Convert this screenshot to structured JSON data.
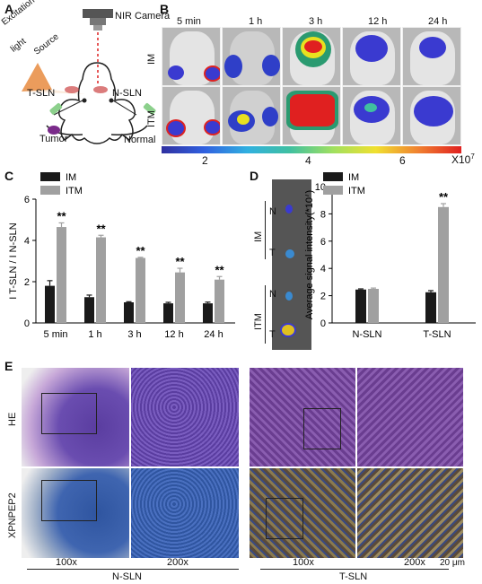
{
  "panels": {
    "A": "A",
    "B": "B",
    "C": "C",
    "D": "D",
    "E": "E"
  },
  "panelA": {
    "nir_camera": "NIR Camera",
    "excitation_line1": "Excitation",
    "excitation_line2": "light",
    "excitation_line3": "Source",
    "t_sln": "T-SLN",
    "n_sln": "N-SLN",
    "tumor": "Tumor",
    "normal": "Normal"
  },
  "panelB": {
    "timepoints": [
      "5 min",
      "1 h",
      "3 h",
      "12 h",
      "24 h"
    ],
    "rows": [
      "IM",
      "ITM"
    ],
    "colorbar_ticks": [
      "2",
      "4",
      "6"
    ],
    "colorbar_unit": "X10",
    "colorbar_exp": "7",
    "colors": {
      "low": "#3030c0",
      "mid": "#40c0a0",
      "high": "#e02020"
    }
  },
  "chart_data": [
    {
      "type": "bar",
      "panel": "C",
      "categories": [
        "5 min",
        "1 h",
        "3 h",
        "12 h",
        "24 h"
      ],
      "series": [
        {
          "name": "IM",
          "color": "#1a1a1a",
          "values": [
            1.8,
            1.25,
            1.0,
            0.95,
            0.95
          ],
          "errors": [
            0.25,
            0.1,
            0.03,
            0.05,
            0.06
          ]
        },
        {
          "name": "ITM",
          "color": "#a0a0a0",
          "values": [
            4.65,
            4.15,
            3.15,
            2.45,
            2.1
          ],
          "errors": [
            0.2,
            0.1,
            0.03,
            0.2,
            0.15
          ]
        }
      ],
      "significance": [
        "**",
        "**",
        "**",
        "**",
        "**"
      ],
      "ylabel": "I T-SLN / I N-SLN",
      "yticks": [
        "0",
        "2",
        "4",
        "6"
      ],
      "ylim": [
        0,
        6
      ]
    },
    {
      "type": "bar",
      "panel": "D",
      "categories": [
        "N-SLN",
        "T-SLN"
      ],
      "series": [
        {
          "name": "IM",
          "color": "#1a1a1a",
          "values": [
            2.45,
            2.25
          ],
          "errors": [
            0.05,
            0.12
          ]
        },
        {
          "name": "ITM",
          "color": "#a0a0a0",
          "values": [
            2.5,
            8.5
          ],
          "errors": [
            0.06,
            0.25
          ]
        }
      ],
      "significance": [
        "",
        "**"
      ],
      "ylabel": "Average signal intensity(*10",
      "ylabel_exp": "7",
      "ylabel_close": ")",
      "yticks": [
        "0",
        "2",
        "4",
        "6",
        "8",
        "10"
      ],
      "ylim": [
        0,
        10
      ]
    }
  ],
  "panelD_image": {
    "group1": "IM",
    "group2": "ITM",
    "n": "N",
    "t": "T"
  },
  "panelE": {
    "row_labels": [
      "HE",
      "XPNPEP2"
    ],
    "mags_left": [
      "100x",
      "200x"
    ],
    "mags_right": [
      "100x",
      "200x"
    ],
    "group_left": "N-SLN",
    "group_right": "T-SLN",
    "scale": "20 μm"
  }
}
